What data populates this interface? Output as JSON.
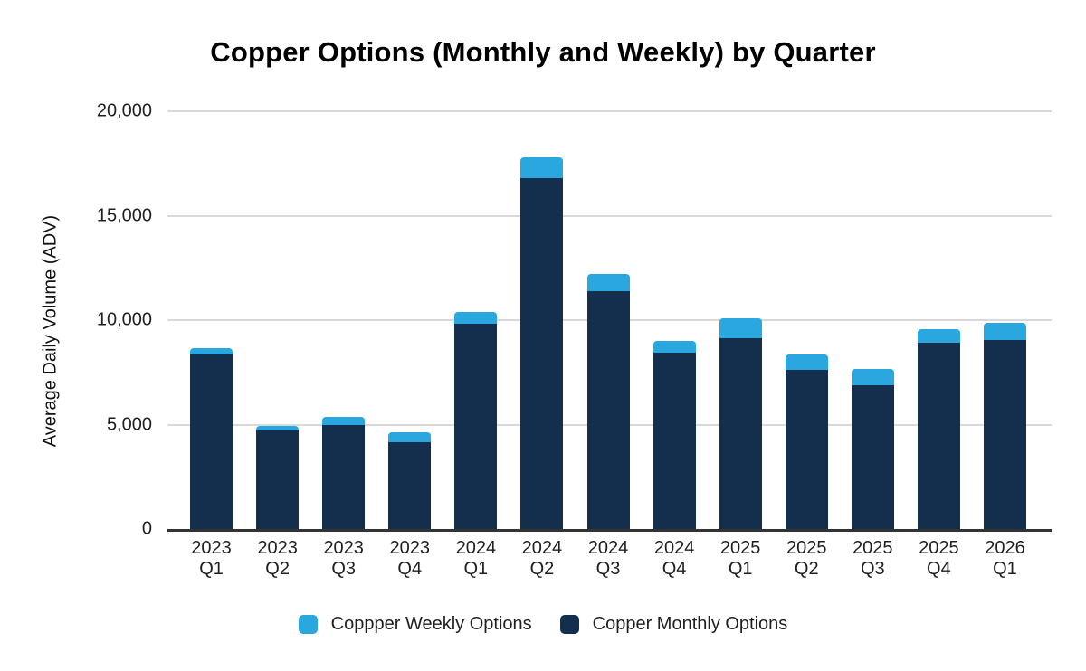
{
  "title": "Copper Options (Monthly and Weekly) by Quarter",
  "chart_data": {
    "type": "bar",
    "stacked": true,
    "title": "Copper Options (Monthly and Weekly) by Quarter",
    "xlabel": "",
    "ylabel": "Average Daily Volume (ADV)",
    "ylim": [
      0,
      20000
    ],
    "grid": true,
    "legend_position": "bottom",
    "categories": [
      {
        "year": "2023",
        "quarter": "Q1"
      },
      {
        "year": "2023",
        "quarter": "Q2"
      },
      {
        "year": "2023",
        "quarter": "Q3"
      },
      {
        "year": "2023",
        "quarter": "Q4"
      },
      {
        "year": "2024",
        "quarter": "Q1"
      },
      {
        "year": "2024",
        "quarter": "Q2"
      },
      {
        "year": "2024",
        "quarter": "Q3"
      },
      {
        "year": "2024",
        "quarter": "Q4"
      },
      {
        "year": "2025",
        "quarter": "Q1"
      },
      {
        "year": "2025",
        "quarter": "Q2"
      },
      {
        "year": "2025",
        "quarter": "Q3"
      },
      {
        "year": "2025",
        "quarter": "Q4"
      },
      {
        "year": "2026",
        "quarter": "Q1"
      }
    ],
    "yticks": [
      {
        "value": 20000,
        "label": "20,000"
      },
      {
        "value": 15000,
        "label": "15,000"
      },
      {
        "value": 10000,
        "label": "10,000"
      },
      {
        "value": 5000,
        "label": "5,000"
      },
      {
        "value": 0,
        "label": "0"
      }
    ],
    "series": [
      {
        "name": "Coppper Weekly Options",
        "color": "#2AA7DF",
        "stack_order": "top",
        "values": [
          300,
          250,
          350,
          500,
          550,
          1000,
          800,
          550,
          950,
          750,
          750,
          650,
          800
        ]
      },
      {
        "name": "Copper Monthly Options",
        "color": "#142E4D",
        "stack_order": "bottom",
        "values": [
          8350,
          4700,
          5000,
          4150,
          9850,
          16800,
          11400,
          8450,
          9150,
          7600,
          6900,
          8900,
          9050
        ]
      }
    ]
  },
  "colors": {
    "weekly": "#2AA7DF",
    "monthly": "#142E4D",
    "gridline": "#D9D9D9",
    "axis_line": "#333333",
    "text": "#1F1F1F",
    "title_text": "#000000",
    "background": "#FFFFFF"
  }
}
